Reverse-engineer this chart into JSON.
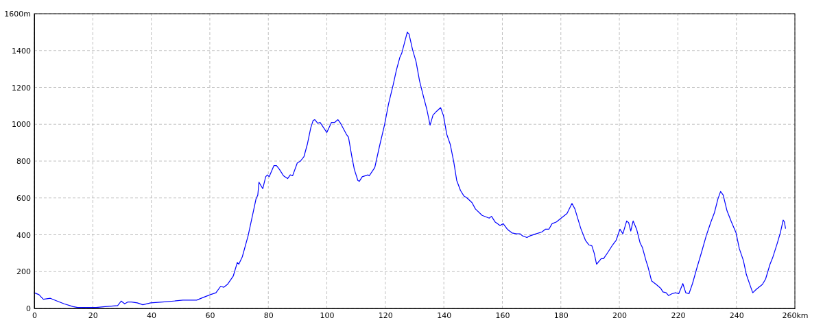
{
  "chart_data": {
    "type": "line",
    "x": [
      0,
      1.6,
      3.1,
      5.5,
      7.8,
      10.2,
      13.3,
      14.8,
      21.1,
      24.2,
      28.5,
      29.7,
      30.9,
      32.0,
      33.2,
      35.2,
      37.1,
      39.8,
      43.8,
      47.7,
      50.8,
      55.5,
      57.8,
      60.2,
      62.1,
      63.7,
      64.8,
      66.0,
      68.0,
      69.4,
      69.9,
      71.1,
      73.1,
      75.0,
      75.8,
      76.4,
      76.8,
      78.1,
      79.1,
      79.7,
      80.3,
      81.9,
      82.8,
      83.8,
      85.2,
      86.6,
      87.5,
      88.3,
      89.9,
      91.0,
      92.2,
      93.4,
      94.5,
      95.3,
      95.9,
      96.9,
      97.7,
      100.0,
      101.6,
      102.7,
      103.8,
      104.7,
      106.7,
      107.4,
      108.6,
      109.4,
      110.6,
      111.1,
      112.1,
      114.1,
      114.5,
      116.4,
      118.0,
      119.7,
      121.1,
      122.7,
      123.8,
      125.0,
      125.6,
      126.6,
      127.5,
      128.1,
      129.3,
      130.5,
      131.7,
      133.2,
      134.2,
      135.3,
      136.3,
      137.5,
      138.9,
      139.9,
      141.0,
      142.2,
      143.4,
      144.4,
      145.7,
      146.9,
      147.9,
      149.6,
      150.8,
      153.1,
      155.5,
      156.3,
      157.5,
      159.2,
      160.3,
      161.7,
      163.3,
      164.9,
      166.1,
      166.8,
      168.4,
      169.6,
      171.5,
      173.5,
      174.7,
      175.9,
      177.0,
      178.5,
      180.1,
      182.1,
      183.8,
      184.8,
      186.8,
      188.4,
      189.6,
      190.6,
      191.4,
      192.2,
      193.8,
      194.6,
      196.1,
      197.7,
      198.9,
      200.2,
      201.2,
      202.5,
      203.2,
      203.9,
      204.7,
      205.9,
      207.1,
      207.9,
      209.1,
      209.8,
      211.0,
      212.6,
      214.1,
      214.9,
      216.0,
      216.8,
      218.0,
      219.2,
      220.3,
      221.7,
      222.7,
      223.8,
      225.0,
      226.6,
      228.1,
      229.7,
      231.3,
      232.5,
      233.7,
      234.6,
      235.5,
      236.8,
      238.3,
      239.9,
      241.0,
      242.4,
      243.4,
      244.7,
      245.6,
      246.9,
      248.9,
      250.0,
      251.5,
      252.4,
      254.0,
      255.1,
      256.0,
      256.4,
      256.8
    ],
    "series": [
      {
        "color": "#0000ff",
        "values": [
          85,
          75,
          50,
          55,
          40,
          25,
          10,
          5,
          5,
          10,
          15,
          40,
          25,
          35,
          35,
          30,
          20,
          30,
          35,
          40,
          45,
          45,
          60,
          75,
          85,
          120,
          115,
          130,
          175,
          250,
          240,
          280,
          395,
          535,
          595,
          615,
          685,
          650,
          715,
          725,
          715,
          775,
          775,
          755,
          720,
          705,
          725,
          720,
          790,
          800,
          825,
          895,
          980,
          1020,
          1025,
          1005,
          1010,
          955,
          1010,
          1010,
          1025,
          1005,
          945,
          930,
          820,
          755,
          695,
          690,
          715,
          725,
          720,
          765,
          880,
          995,
          1110,
          1215,
          1295,
          1365,
          1385,
          1445,
          1500,
          1490,
          1405,
          1340,
          1235,
          1140,
          1080,
          995,
          1050,
          1070,
          1090,
          1045,
          945,
          890,
          795,
          695,
          640,
          610,
          600,
          575,
          540,
          505,
          490,
          500,
          470,
          450,
          460,
          430,
          410,
          405,
          405,
          395,
          385,
          395,
          405,
          415,
          430,
          430,
          460,
          470,
          490,
          515,
          570,
          540,
          435,
          370,
          345,
          340,
          300,
          240,
          270,
          270,
          305,
          345,
          370,
          430,
          405,
          475,
          465,
          420,
          475,
          430,
          355,
          330,
          260,
          225,
          150,
          130,
          110,
          90,
          85,
          70,
          80,
          85,
          80,
          135,
          85,
          80,
          135,
          225,
          305,
          395,
          470,
          520,
          595,
          635,
          615,
          530,
          470,
          410,
          325,
          260,
          185,
          125,
          85,
          105,
          130,
          160,
          240,
          275,
          355,
          415,
          480,
          470,
          435
        ]
      }
    ],
    "xlim": [
      0,
      260
    ],
    "ylim": [
      0,
      1600
    ],
    "xticks": [
      0,
      20,
      40,
      60,
      80,
      100,
      120,
      140,
      160,
      180,
      200,
      220,
      240,
      {
        "value": 260,
        "label": "260km"
      }
    ],
    "yticks": [
      0,
      200,
      400,
      600,
      800,
      1000,
      1200,
      1400,
      {
        "value": 1600,
        "label": "1600m"
      }
    ],
    "grid": true,
    "line_style": "solid"
  }
}
